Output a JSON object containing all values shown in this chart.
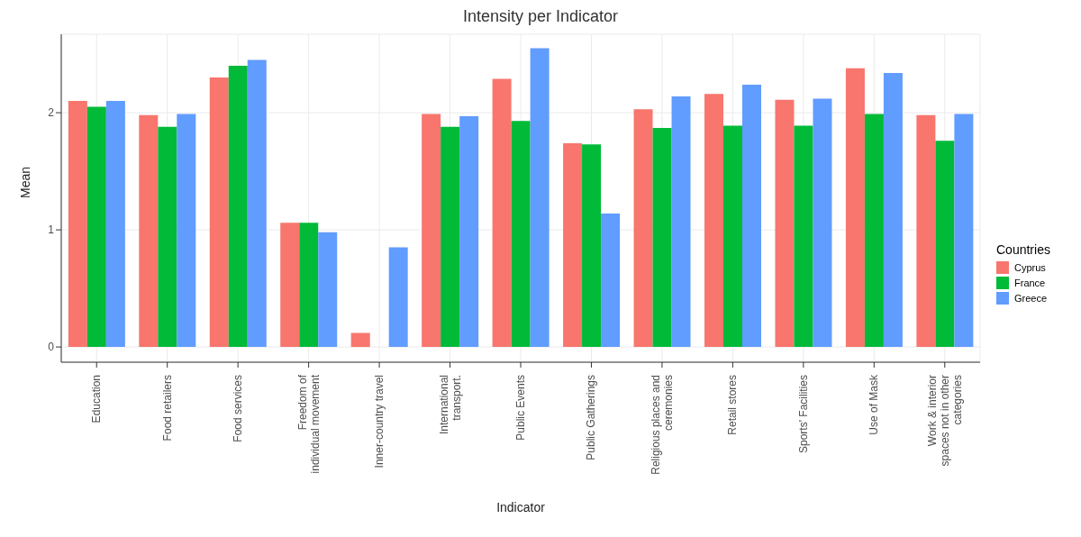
{
  "chart_data": {
    "type": "bar",
    "title": "Intensity per Indicator",
    "xlabel": "Indicator",
    "ylabel": "Mean",
    "legend_title": "Countries",
    "categories": [
      "Education",
      "Food retailers",
      "Food services",
      "Freedom of\nindividual movement",
      "Inner-country travel",
      "International\ntransport.",
      "Public Events",
      "Public Gatherings",
      "Religious places and\nceremonies",
      "Retail stores",
      "Sports' Facilities",
      "Use of Mask",
      "Work & interior\nspaces not in other\ncategories"
    ],
    "series": [
      {
        "name": "Cyprus",
        "color": "#f8766d",
        "values": [
          2.1,
          1.98,
          2.3,
          1.06,
          0.12,
          1.99,
          2.29,
          1.74,
          2.03,
          2.16,
          2.11,
          2.38,
          1.98
        ]
      },
      {
        "name": "France",
        "color": "#00ba38",
        "values": [
          2.05,
          1.88,
          2.4,
          1.06,
          null,
          1.88,
          1.93,
          1.73,
          1.87,
          1.89,
          1.89,
          1.99,
          1.76
        ]
      },
      {
        "name": "Greece",
        "color": "#619cff",
        "values": [
          2.1,
          1.99,
          2.45,
          0.98,
          0.85,
          1.97,
          2.55,
          1.14,
          2.14,
          2.24,
          2.12,
          2.34,
          1.99
        ]
      }
    ],
    "ylim": [
      -0.13,
      2.67
    ],
    "yticks": [
      0,
      1,
      2
    ],
    "grid": true,
    "legend": "right"
  }
}
